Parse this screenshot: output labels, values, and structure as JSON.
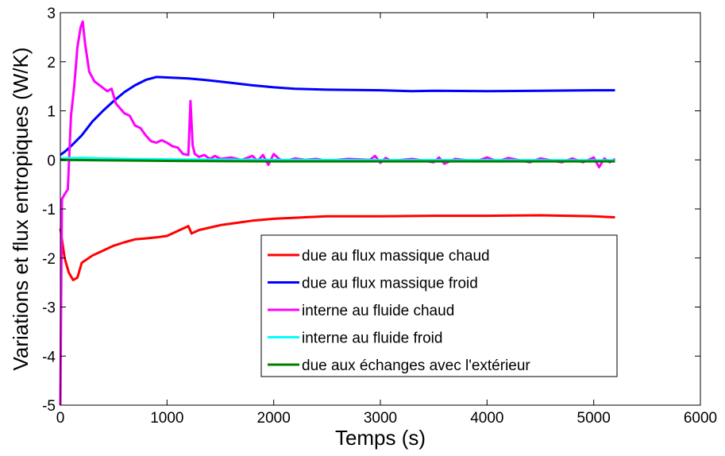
{
  "chart_data": {
    "type": "line",
    "xlabel": "Temps (s)",
    "ylabel": "Variations et flux entropiques (W/K)",
    "xlim": [
      0,
      6000
    ],
    "ylim": [
      -5,
      3
    ],
    "xticks": [
      0,
      1000,
      2000,
      3000,
      4000,
      5000,
      6000
    ],
    "yticks": [
      -5,
      -4,
      -3,
      -2,
      -1,
      0,
      1,
      2,
      3
    ],
    "grid": false,
    "legend_position": "lower-right",
    "series": [
      {
        "name": "due au flux massique chaud",
        "color": "#ff0000",
        "points": [
          [
            0,
            -1.4
          ],
          [
            40,
            -2.0
          ],
          [
            80,
            -2.3
          ],
          [
            120,
            -2.45
          ],
          [
            160,
            -2.4
          ],
          [
            200,
            -2.1
          ],
          [
            300,
            -1.95
          ],
          [
            400,
            -1.85
          ],
          [
            500,
            -1.75
          ],
          [
            600,
            -1.68
          ],
          [
            700,
            -1.62
          ],
          [
            800,
            -1.6
          ],
          [
            900,
            -1.58
          ],
          [
            1000,
            -1.55
          ],
          [
            1100,
            -1.45
          ],
          [
            1200,
            -1.35
          ],
          [
            1230,
            -1.5
          ],
          [
            1300,
            -1.43
          ],
          [
            1400,
            -1.38
          ],
          [
            1500,
            -1.33
          ],
          [
            1600,
            -1.3
          ],
          [
            1800,
            -1.24
          ],
          [
            2000,
            -1.2
          ],
          [
            2200,
            -1.18
          ],
          [
            2500,
            -1.15
          ],
          [
            3000,
            -1.15
          ],
          [
            3500,
            -1.14
          ],
          [
            4000,
            -1.14
          ],
          [
            4500,
            -1.13
          ],
          [
            5000,
            -1.15
          ],
          [
            5200,
            -1.17
          ]
        ]
      },
      {
        "name": "due au flux massique froid",
        "color": "#0000ff",
        "points": [
          [
            0,
            0.1
          ],
          [
            50,
            0.18
          ],
          [
            100,
            0.28
          ],
          [
            200,
            0.5
          ],
          [
            300,
            0.78
          ],
          [
            400,
            1.0
          ],
          [
            500,
            1.2
          ],
          [
            600,
            1.38
          ],
          [
            700,
            1.52
          ],
          [
            800,
            1.63
          ],
          [
            900,
            1.69
          ],
          [
            1000,
            1.68
          ],
          [
            1200,
            1.66
          ],
          [
            1400,
            1.62
          ],
          [
            1600,
            1.57
          ],
          [
            1800,
            1.52
          ],
          [
            2000,
            1.48
          ],
          [
            2200,
            1.45
          ],
          [
            2500,
            1.43
          ],
          [
            3000,
            1.42
          ],
          [
            3300,
            1.4
          ],
          [
            3500,
            1.41
          ],
          [
            4000,
            1.4
          ],
          [
            4500,
            1.41
          ],
          [
            5000,
            1.42
          ],
          [
            5200,
            1.42
          ]
        ]
      },
      {
        "name": "interne au fluide chaud",
        "color": "#ff00ff",
        "points": [
          [
            0,
            -5.0
          ],
          [
            15,
            -0.8
          ],
          [
            40,
            -0.7
          ],
          [
            70,
            -0.6
          ],
          [
            100,
            0.9
          ],
          [
            130,
            1.5
          ],
          [
            160,
            2.3
          ],
          [
            190,
            2.7
          ],
          [
            210,
            2.82
          ],
          [
            230,
            2.4
          ],
          [
            270,
            1.8
          ],
          [
            320,
            1.6
          ],
          [
            380,
            1.5
          ],
          [
            440,
            1.4
          ],
          [
            480,
            1.45
          ],
          [
            520,
            1.15
          ],
          [
            560,
            1.05
          ],
          [
            600,
            0.95
          ],
          [
            650,
            0.9
          ],
          [
            700,
            0.7
          ],
          [
            750,
            0.65
          ],
          [
            800,
            0.5
          ],
          [
            850,
            0.38
          ],
          [
            900,
            0.35
          ],
          [
            950,
            0.4
          ],
          [
            1000,
            0.35
          ],
          [
            1050,
            0.28
          ],
          [
            1100,
            0.25
          ],
          [
            1150,
            0.12
          ],
          [
            1200,
            0.1
          ],
          [
            1220,
            1.2
          ],
          [
            1240,
            0.3
          ],
          [
            1260,
            0.12
          ],
          [
            1300,
            0.06
          ],
          [
            1350,
            0.1
          ],
          [
            1400,
            0.02
          ],
          [
            1450,
            0.08
          ],
          [
            1500,
            0.02
          ],
          [
            1600,
            0.05
          ],
          [
            1700,
            0.0
          ],
          [
            1800,
            0.08
          ],
          [
            1850,
            -0.02
          ],
          [
            1900,
            0.1
          ],
          [
            1950,
            -0.1
          ],
          [
            2000,
            0.12
          ],
          [
            2050,
            0.02
          ],
          [
            2100,
            -0.03
          ],
          [
            2200,
            0.03
          ],
          [
            2300,
            0.0
          ],
          [
            2400,
            0.02
          ],
          [
            2500,
            -0.02
          ],
          [
            2700,
            0.02
          ],
          [
            2900,
            0.0
          ],
          [
            2950,
            0.08
          ],
          [
            3000,
            -0.06
          ],
          [
            3050,
            0.04
          ],
          [
            3100,
            -0.02
          ],
          [
            3300,
            0.02
          ],
          [
            3500,
            -0.05
          ],
          [
            3550,
            0.05
          ],
          [
            3600,
            -0.08
          ],
          [
            3700,
            0.02
          ],
          [
            3900,
            -0.03
          ],
          [
            4000,
            0.05
          ],
          [
            4100,
            -0.03
          ],
          [
            4200,
            0.04
          ],
          [
            4400,
            -0.05
          ],
          [
            4500,
            0.03
          ],
          [
            4700,
            -0.05
          ],
          [
            4800,
            0.03
          ],
          [
            4900,
            -0.05
          ],
          [
            5000,
            0.05
          ],
          [
            5050,
            -0.15
          ],
          [
            5100,
            0.03
          ],
          [
            5150,
            -0.05
          ],
          [
            5200,
            0.02
          ]
        ]
      },
      {
        "name": "interne au fluide froid",
        "color": "#00ffff",
        "points": [
          [
            0,
            0.03
          ],
          [
            200,
            0.04
          ],
          [
            400,
            0.03
          ],
          [
            600,
            0.02
          ],
          [
            1000,
            0.01
          ],
          [
            2000,
            0.0
          ],
          [
            3000,
            -0.005
          ],
          [
            4000,
            -0.005
          ],
          [
            5000,
            -0.01
          ],
          [
            5200,
            -0.01
          ]
        ]
      },
      {
        "name": "due aux échanges avec l'extérieur",
        "color": "#007f00",
        "points": [
          [
            0,
            0.0
          ],
          [
            500,
            -0.01
          ],
          [
            1000,
            -0.02
          ],
          [
            2000,
            -0.03
          ],
          [
            3000,
            -0.03
          ],
          [
            4000,
            -0.03
          ],
          [
            5000,
            -0.03
          ],
          [
            5200,
            -0.03
          ]
        ]
      }
    ]
  }
}
